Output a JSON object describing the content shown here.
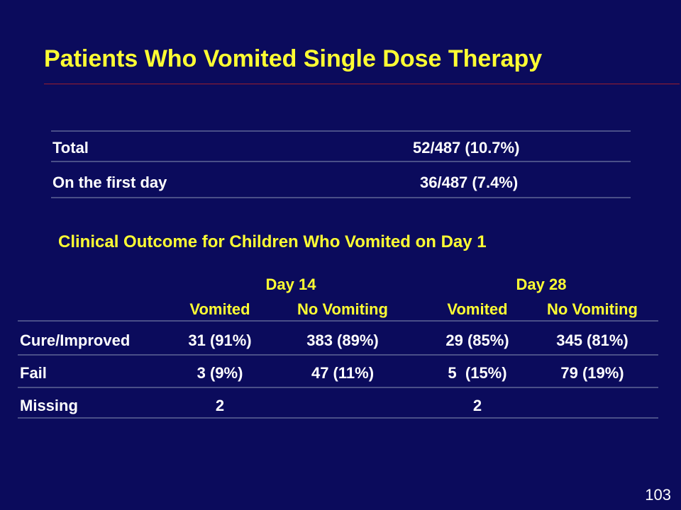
{
  "slide": {
    "title": "Patients Who Vomited Single Dose Therapy",
    "page_number": "103"
  },
  "summary_table": {
    "rows": [
      {
        "label": "Total",
        "value": "52/487 (10.7%)"
      },
      {
        "label": "On the first day",
        "value": "36/487 (7.4%)"
      }
    ]
  },
  "outcome_table": {
    "title": "Clinical Outcome for Children Who Vomited on Day 1",
    "groups": [
      "Day 14",
      "Day 28"
    ],
    "subheaders": [
      "Vomited",
      "No Vomiting",
      "Vomited",
      "No Vomiting"
    ],
    "rows": [
      {
        "label": "Cure/Improved",
        "cells": [
          "31 (91%)",
          "383 (89%)",
          "29 (85%)",
          "345 (81%)"
        ]
      },
      {
        "label": "Fail",
        "cells": [
          "3 (9%)",
          "47 (11%)",
          "5  (15%)",
          "79 (19%)"
        ]
      },
      {
        "label": "Missing",
        "cells": [
          "2",
          "",
          "2",
          ""
        ]
      }
    ]
  },
  "colors": {
    "background": "#0b0b5c",
    "title": "#ffff33",
    "text": "#ffffff",
    "rule": "#4a4f88"
  }
}
